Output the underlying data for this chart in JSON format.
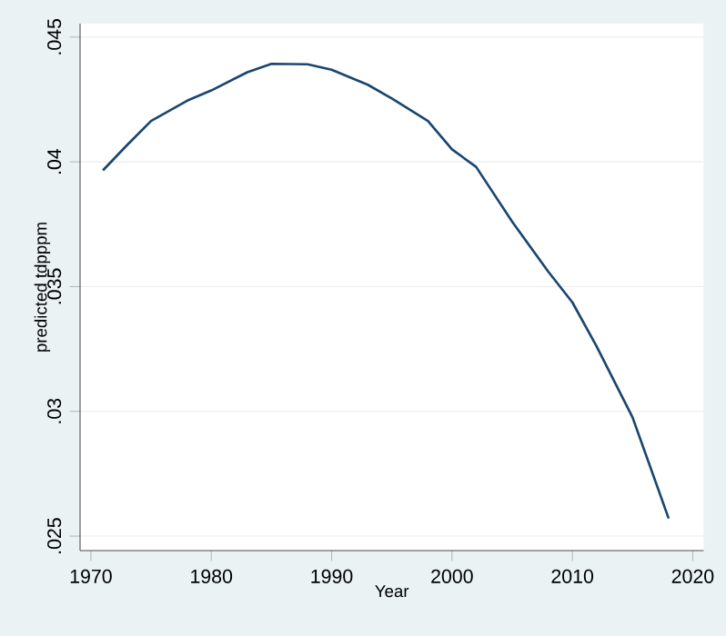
{
  "chart_data": {
    "type": "line",
    "xlabel": "Year",
    "ylabel": "predicted tdpppm",
    "x": [
      1971,
      1973,
      1975,
      1978,
      1980,
      1983,
      1985,
      1988,
      1990,
      1993,
      1995,
      1998,
      2000,
      2002,
      2005,
      2008,
      2010,
      2012,
      2015,
      2018
    ],
    "series": [
      {
        "color": "#1a476f",
        "values": [
          0.03966,
          0.04067,
          0.04164,
          0.04245,
          0.04286,
          0.04359,
          0.04393,
          0.04391,
          0.04369,
          0.04309,
          0.04254,
          0.04164,
          0.0405,
          0.0398,
          0.0376,
          0.0356,
          0.03437,
          0.03262,
          0.02976,
          0.02571
        ]
      }
    ],
    "xlim": [
      1969.1,
      2020.9
    ],
    "ylim": [
      0.02442,
      0.04554
    ],
    "xticks": [
      1970,
      1980,
      1990,
      2000,
      2010,
      2020
    ],
    "yticks": [
      {
        "value": 0.025,
        "label": ".025"
      },
      {
        "value": 0.03,
        "label": ".03"
      },
      {
        "value": 0.035,
        "label": ".035"
      },
      {
        "value": 0.04,
        "label": ".04"
      },
      {
        "value": 0.045,
        "label": ".045"
      }
    ],
    "grid": "y",
    "marker": "none",
    "line_style": "solid"
  }
}
